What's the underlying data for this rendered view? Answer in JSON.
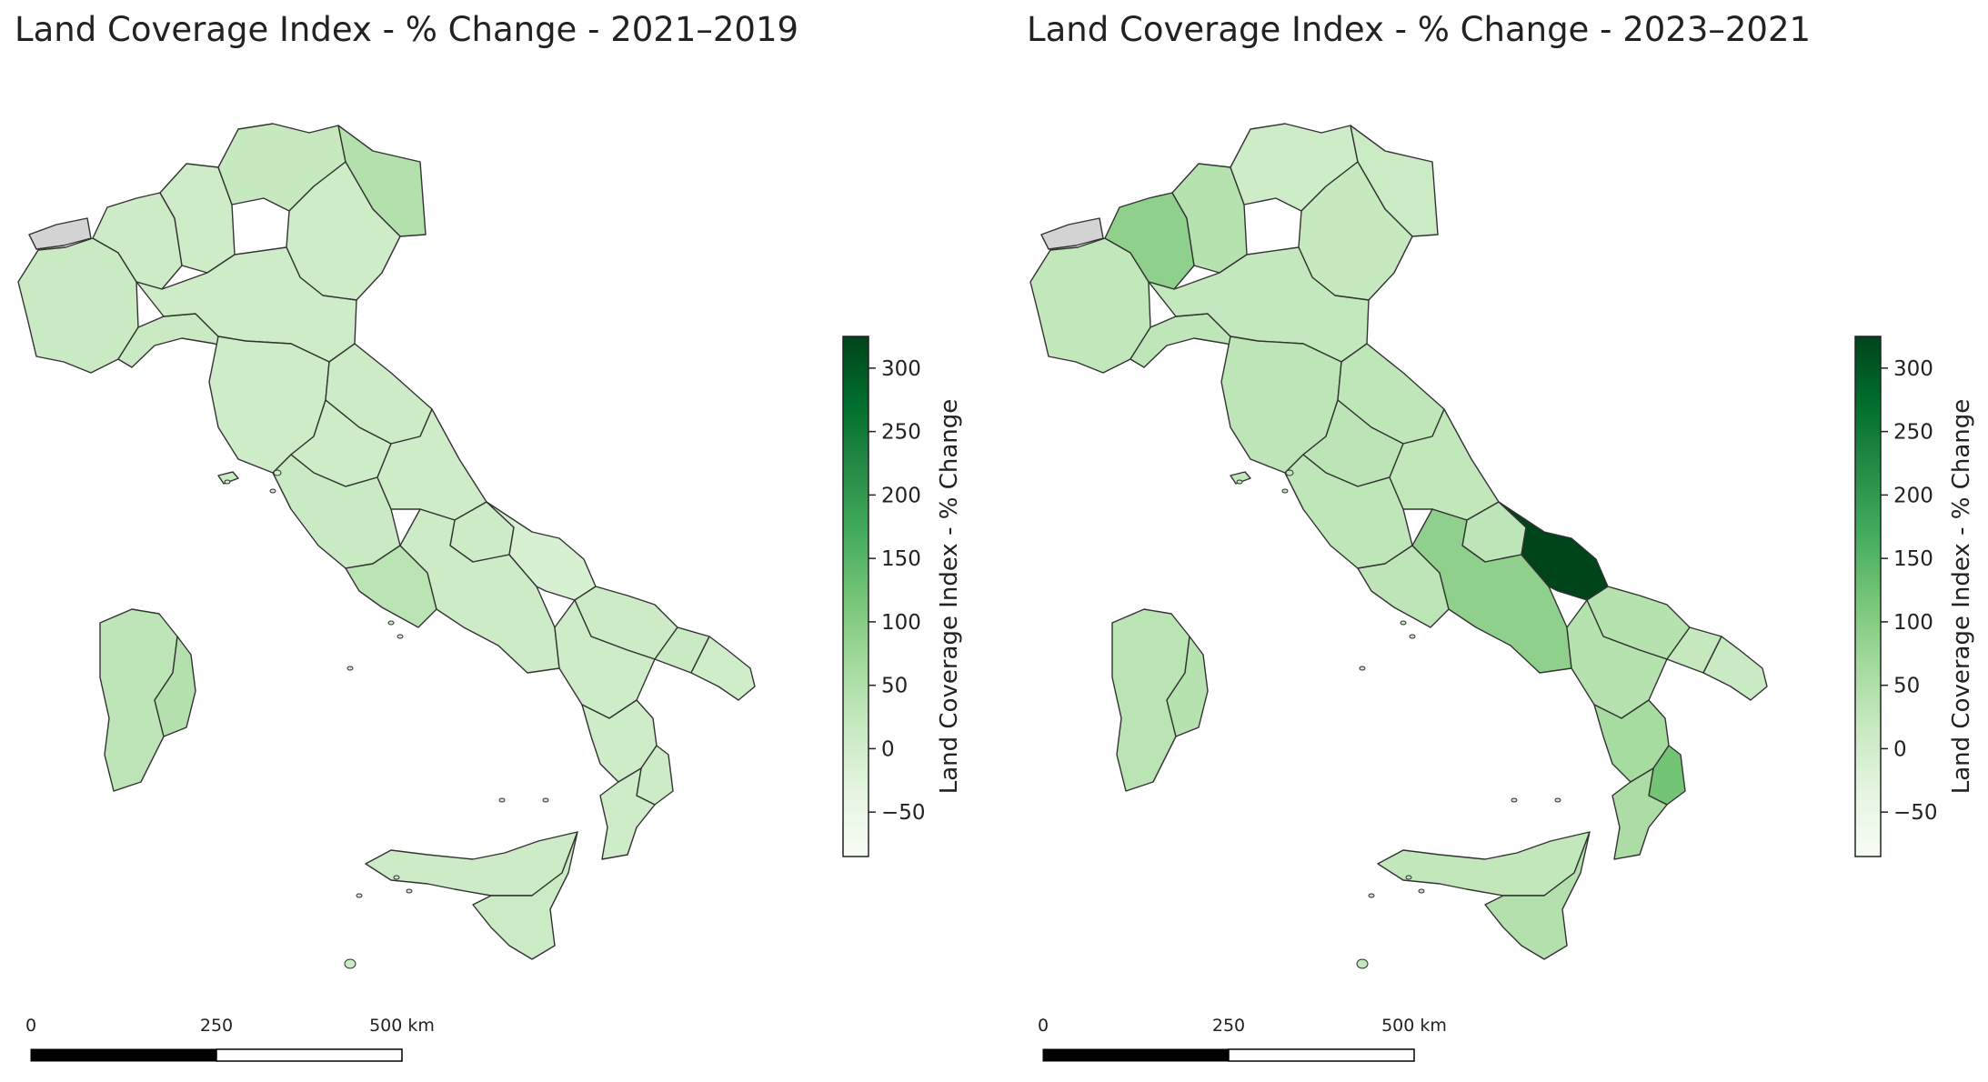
{
  "colors": {
    "scale": [
      "#f7fcf5",
      "#e5f5e0",
      "#c7e9c0",
      "#a1d99b",
      "#74c476",
      "#41ab5d",
      "#238b45",
      "#006d2c",
      "#00441b"
    ],
    "no_data": "#d3d3d3",
    "border": "#333333"
  },
  "maps": [
    {
      "title": "Land Coverage Index - % Change - 2021–2019",
      "colorbar": {
        "label": "Land Coverage Index - % Change",
        "min": -85,
        "max": 325,
        "ticks": [
          -50,
          0,
          50,
          100,
          150,
          200,
          250,
          300
        ],
        "tick_labels": [
          "−50",
          "0",
          "50",
          "100",
          "150",
          "200",
          "250",
          "300"
        ]
      },
      "scalebar": {
        "labels": [
          "0",
          "250",
          "500 km"
        ]
      },
      "regions": {
        "piedmont": 12,
        "valle-daosta": null,
        "lombardy-west": 8,
        "lombardy-east": 6,
        "trentino": 18,
        "veneto": 5,
        "friuli": 45,
        "liguria": 14,
        "emilia-romagna": 4,
        "tuscany": 6,
        "marche": 8,
        "umbria": 5,
        "lazio": 12,
        "lazio-south": 35,
        "abruzzo": 5,
        "molise": 7,
        "campania": 8,
        "apulia-north": -12,
        "apulia-central": 8,
        "apulia-south": 12,
        "salento": 2,
        "basilicata": 6,
        "calabria-north": 6,
        "calabria-east": 8,
        "calabria-south": 5,
        "sicily": 8,
        "sicily-east": 10,
        "sardinia": 30,
        "sardinia-east": 45,
        "elba": 10
      }
    },
    {
      "title": "Land Coverage Index - % Change - 2023–2021",
      "colorbar": {
        "label": "Land Coverage Index - % Change",
        "min": -85,
        "max": 325,
        "ticks": [
          -50,
          0,
          50,
          100,
          150,
          200,
          250,
          300
        ],
        "tick_labels": [
          "−50",
          "0",
          "50",
          "100",
          "150",
          "200",
          "250",
          "300"
        ]
      },
      "scalebar": {
        "labels": [
          "0",
          "250",
          "500 km"
        ]
      },
      "regions": {
        "piedmont": 25,
        "valle-daosta": null,
        "lombardy-west": 90,
        "lombardy-east": 40,
        "trentino": 5,
        "veneto": 18,
        "friuli": 10,
        "liguria": 28,
        "emilia-romagna": 22,
        "tuscany": 30,
        "marche": 28,
        "umbria": 32,
        "lazio": 28,
        "lazio-south": 30,
        "abruzzo": 25,
        "molise": 30,
        "campania": 90,
        "apulia-north": 325,
        "apulia-central": 40,
        "apulia-south": 20,
        "salento": 12,
        "basilicata": 40,
        "calabria-north": 60,
        "calabria-east": 120,
        "calabria-south": 55,
        "sicily": 25,
        "sicily-east": 45,
        "sardinia": 35,
        "sardinia-east": 40,
        "elba": 25
      }
    }
  ]
}
